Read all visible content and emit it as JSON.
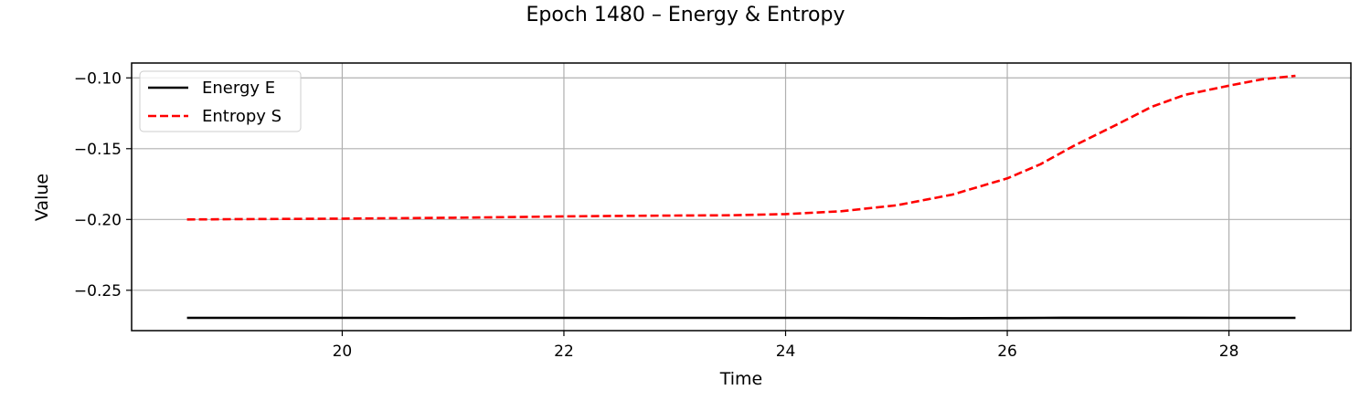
{
  "chart_data": {
    "type": "line",
    "title": "Epoch 1480 – Energy & Entropy",
    "xlabel": "Time",
    "ylabel": "Value",
    "xlim": [
      18.1,
      29.1
    ],
    "ylim": [
      -0.2785,
      -0.0895
    ],
    "xticks": [
      20,
      22,
      24,
      26,
      28
    ],
    "xtick_labels": [
      "20",
      "22",
      "24",
      "26",
      "28"
    ],
    "yticks": [
      -0.1,
      -0.15,
      -0.2,
      -0.25
    ],
    "ytick_labels": [
      "−0.10",
      "−0.15",
      "−0.20",
      "−0.25"
    ],
    "grid": true,
    "legend_position": "upper left",
    "series": [
      {
        "name": "Energy E",
        "color": "#000000",
        "style": "solid",
        "x": [
          18.6,
          19.5,
          20.5,
          21.5,
          22.5,
          23.5,
          24.5,
          25.0,
          25.5,
          26.0,
          26.5,
          27.0,
          27.5,
          28.0,
          28.6
        ],
        "y": [
          -0.2695,
          -0.2695,
          -0.2695,
          -0.2695,
          -0.2695,
          -0.2695,
          -0.2695,
          -0.2696,
          -0.2697,
          -0.2696,
          -0.2694,
          -0.2694,
          -0.2694,
          -0.2695,
          -0.2695
        ]
      },
      {
        "name": "Entropy S",
        "color": "#ff0000",
        "style": "dashed",
        "x": [
          18.6,
          19.0,
          19.5,
          20.0,
          20.5,
          21.0,
          21.5,
          22.0,
          22.5,
          23.0,
          23.5,
          24.0,
          24.5,
          25.0,
          25.5,
          26.0,
          26.3,
          26.6,
          27.0,
          27.3,
          27.6,
          28.0,
          28.3,
          28.6
        ],
        "y": [
          -0.2,
          -0.1998,
          -0.1996,
          -0.1994,
          -0.1991,
          -0.1988,
          -0.1983,
          -0.1978,
          -0.1975,
          -0.1972,
          -0.197,
          -0.1962,
          -0.1942,
          -0.19,
          -0.1825,
          -0.171,
          -0.161,
          -0.148,
          -0.1325,
          -0.1205,
          -0.112,
          -0.1055,
          -0.101,
          -0.0985
        ]
      }
    ]
  }
}
